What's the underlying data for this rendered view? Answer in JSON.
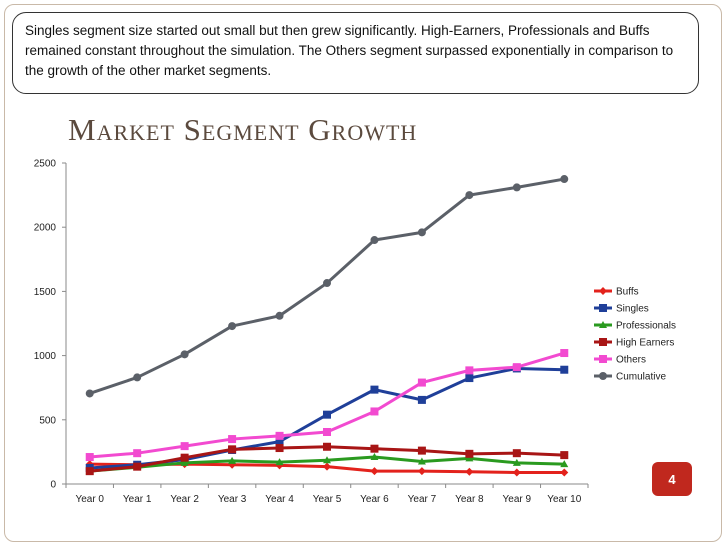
{
  "callout": {
    "text": "Singles segment size started out small but then grew significantly. High-Earners, Professionals and Buffs remained constant throughout the simulation. The Others segment surpassed exponentially in comparison to the growth of the other market segments."
  },
  "page_number": "4",
  "chart_data": {
    "type": "line",
    "title": "Market Segment Growth",
    "xlabel": "",
    "ylabel": "",
    "ylim": [
      0,
      2500
    ],
    "yticks": [
      0,
      500,
      1000,
      1500,
      2000,
      2500
    ],
    "categories": [
      "Year 0",
      "Year 1",
      "Year 2",
      "Year 3",
      "Year 4",
      "Year 5",
      "Year 6",
      "Year 7",
      "Year 8",
      "Year 9",
      "Year 10"
    ],
    "legend_position": "right",
    "series": [
      {
        "name": "Buffs",
        "color": "#e3221c",
        "marker": "diamond",
        "values": [
          155,
          150,
          155,
          150,
          145,
          135,
          100,
          100,
          95,
          90,
          90
        ]
      },
      {
        "name": "Singles",
        "color": "#1f3f99",
        "marker": "square",
        "values": [
          125,
          150,
          190,
          265,
          330,
          540,
          735,
          655,
          825,
          900,
          890
        ]
      },
      {
        "name": "Professionals",
        "color": "#2a9a1f",
        "marker": "triangle",
        "values": [
          100,
          130,
          165,
          180,
          170,
          185,
          210,
          175,
          200,
          165,
          155
        ]
      },
      {
        "name": "High Earners",
        "color": "#a81515",
        "marker": "square",
        "values": [
          100,
          135,
          205,
          270,
          280,
          290,
          275,
          260,
          235,
          240,
          225
        ]
      },
      {
        "name": "Others",
        "color": "#f24ad0",
        "marker": "square",
        "values": [
          210,
          240,
          295,
          350,
          375,
          405,
          565,
          790,
          885,
          910,
          1020
        ]
      },
      {
        "name": "Cumulative",
        "color": "#5b6068",
        "marker": "circle",
        "values": [
          705,
          830,
          1010,
          1230,
          1310,
          1565,
          1900,
          1960,
          2250,
          2310,
          2375
        ]
      }
    ]
  }
}
